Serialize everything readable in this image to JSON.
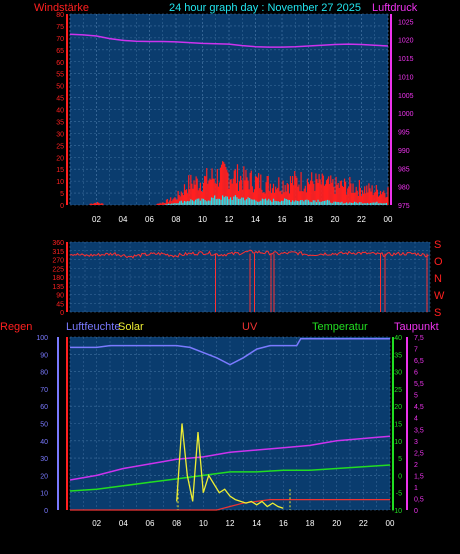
{
  "title": "24 hour graph day : November 27 2025",
  "colors": {
    "bg": "#000000",
    "plot": "#0a3c6e",
    "grid": "#3f6f9f",
    "wind": "#ff2020",
    "gust": "#ff2020",
    "windavg": "#22e4ee",
    "pressure": "#cc33ee",
    "direction": "#ff3030",
    "humidity": "#7a7aff",
    "solar": "#eeee33",
    "uv": "#ee3333",
    "temperature": "#22dd22",
    "dewpoint": "#cc33ee",
    "rain": "#ff2020",
    "tick_white": "#ffffff"
  },
  "chart_data": [
    {
      "type": "line",
      "panel": "wind_pressure",
      "labels": {
        "left": "Windstärke",
        "right": "Luftdruck"
      },
      "x_ticks": [
        "02",
        "04",
        "06",
        "08",
        "10",
        "12",
        "14",
        "16",
        "18",
        "20",
        "22",
        "00"
      ],
      "x_range": [
        0,
        24
      ],
      "y_left": {
        "ticks": [
          "0",
          "5",
          "10",
          "15",
          "20",
          "25",
          "30",
          "35",
          "40",
          "45",
          "50",
          "55",
          "60",
          "65",
          "70",
          "75",
          "80"
        ],
        "range": [
          0,
          80
        ]
      },
      "y_right": {
        "ticks": [
          "975",
          "980",
          "985",
          "990",
          "995",
          "1000",
          "1005",
          "1010",
          "1015",
          "1020",
          "1025"
        ],
        "range": [
          975,
          1027
        ]
      },
      "series": [
        {
          "name": "Luftdruck",
          "axis": "right",
          "x": [
            0,
            1,
            2,
            3,
            4,
            5,
            6,
            7,
            8,
            9,
            10,
            11,
            12,
            13,
            14,
            15,
            16,
            17,
            18,
            19,
            20,
            21,
            22,
            23,
            24
          ],
          "values": [
            1021.5,
            1021.3,
            1021,
            1020.3,
            1019.8,
            1019.6,
            1019.5,
            1019.5,
            1019.4,
            1019.2,
            1019,
            1018.9,
            1018.8,
            1018.4,
            1018.1,
            1018,
            1018,
            1018.1,
            1018.3,
            1018.5,
            1018.7,
            1018.8,
            1018.7,
            1018.5,
            1018.3
          ]
        },
        {
          "axis": "left",
          "x": [
            0,
            1,
            2,
            3,
            4,
            5,
            6,
            7,
            8,
            9,
            10,
            11,
            12,
            13,
            14,
            15,
            16,
            17,
            18,
            19,
            20,
            21,
            22,
            23,
            24
          ],
          "values": [
            0,
            0,
            1,
            0,
            0,
            0,
            0,
            1,
            3,
            9,
            10,
            12,
            13,
            11,
            10,
            9,
            9,
            10,
            10,
            9,
            8,
            8,
            7,
            6,
            6
          ]
        },
        {
          "axis": "left",
          "x": [
            0,
            1,
            2,
            3,
            4,
            5,
            6,
            7,
            8,
            9,
            10,
            11,
            12,
            13,
            14,
            15,
            16,
            17,
            18,
            19,
            20,
            21,
            22,
            23,
            24
          ],
          "values": [
            0,
            0,
            0,
            0,
            0,
            0,
            0,
            0,
            1,
            2,
            2,
            3,
            3,
            3,
            2,
            2,
            2,
            2,
            2,
            2,
            1,
            1,
            1,
            1,
            1
          ]
        }
      ]
    },
    {
      "type": "scatter",
      "panel": "direction",
      "labels": {
        "right_stack": [
          "S",
          "O",
          "N",
          "W",
          "S"
        ]
      },
      "x_range": [
        0,
        24
      ],
      "y_left": {
        "ticks": [
          "0",
          "45",
          "90",
          "135",
          "180",
          "225",
          "270",
          "315",
          "360"
        ],
        "range": [
          0,
          360
        ]
      },
      "series": [
        {
          "axis": "left",
          "x": [
            0,
            1,
            2,
            3,
            4,
            5,
            6,
            7,
            8,
            9,
            10,
            11,
            12,
            13,
            14,
            15,
            16,
            17,
            18,
            19,
            20,
            21,
            22,
            23,
            24
          ],
          "values": [
            300,
            290,
            295,
            300,
            285,
            295,
            300,
            290,
            300,
            305,
            295,
            300,
            310,
            305,
            300,
            305,
            295,
            300,
            300,
            305,
            300,
            295,
            300,
            300,
            290
          ]
        }
      ]
    },
    {
      "type": "line",
      "panel": "humidity_solar_temp",
      "labels": {
        "rain": "Regen",
        "humidity": "Luftfeuchte",
        "solar": "Solar",
        "uv": "UV",
        "temperature": "Temperatur",
        "dewpoint": "Taupunkt"
      },
      "x_ticks": [
        "02",
        "04",
        "06",
        "08",
        "10",
        "12",
        "14",
        "16",
        "18",
        "20",
        "22",
        "00"
      ],
      "x_range": [
        0,
        24
      ],
      "y_humidity": {
        "ticks": [
          "0",
          "10",
          "20",
          "30",
          "40",
          "50",
          "60",
          "70",
          "80",
          "90",
          "100"
        ],
        "range": [
          0,
          100
        ]
      },
      "y_temperature": {
        "ticks": [
          "-10",
          "-5",
          "0",
          "5",
          "10",
          "15",
          "20",
          "25",
          "30",
          "35",
          "40"
        ],
        "range": [
          -10,
          40
        ]
      },
      "y_dewpoint": {
        "ticks": [
          "0",
          "0,5",
          "1",
          "1,5",
          "2",
          "2,5",
          "3",
          "3,5",
          "4",
          "4,5",
          "5",
          "5,5",
          "6",
          "6,5",
          "7",
          "7,5"
        ],
        "range": [
          0,
          7.5
        ]
      },
      "series": [
        {
          "name": "Luftfeuchte",
          "axis": "humidity",
          "x": [
            0,
            1,
            2,
            3,
            4,
            5,
            6,
            7,
            8,
            9,
            10,
            11,
            12,
            13,
            14,
            15,
            16,
            17,
            17.3,
            18,
            19,
            20,
            21,
            22,
            23,
            24
          ],
          "values": [
            94,
            94,
            94,
            95,
            95,
            95,
            95,
            95,
            95,
            94,
            91,
            88,
            84,
            88,
            93,
            95,
            95,
            95,
            99,
            99,
            99,
            99,
            99,
            99,
            99,
            99
          ]
        },
        {
          "name": "Temperatur",
          "axis": "temperature",
          "x": [
            0,
            2,
            4,
            6,
            8,
            10,
            12,
            14,
            16,
            18,
            20,
            22,
            24
          ],
          "values": [
            -4.5,
            -4,
            -3,
            -2,
            -1,
            0,
            1,
            1,
            1.5,
            1.5,
            2,
            2.5,
            3
          ]
        },
        {
          "name": "Taupunkt",
          "axis": "dewpoint",
          "x": [
            0,
            2,
            4,
            6,
            8,
            10,
            12,
            14,
            16,
            18,
            20,
            22,
            24
          ],
          "values": [
            1.3,
            1.5,
            1.8,
            2,
            2.2,
            2.3,
            2.5,
            2.6,
            2.7,
            2.8,
            3,
            3.1,
            3.2
          ]
        },
        {
          "name": "Solar",
          "axis": "humidity",
          "x": [
            8,
            8.4,
            8.8,
            9.2,
            9.6,
            10,
            10.4,
            10.8,
            11.2,
            11.6,
            12,
            12.4,
            12.8,
            13.2,
            13.6,
            14,
            14.4,
            14.8,
            15.2,
            15.6,
            16
          ],
          "values": [
            5,
            50,
            20,
            5,
            45,
            10,
            20,
            15,
            10,
            12,
            8,
            6,
            5,
            4,
            5,
            3,
            5,
            2,
            4,
            2,
            1
          ]
        },
        {
          "name": "UV",
          "axis": "humidity",
          "x": [
            0,
            8,
            9,
            10,
            11,
            12,
            13,
            14,
            15,
            16,
            17,
            18,
            19,
            20,
            21,
            22,
            23,
            24
          ],
          "values": [
            0,
            0,
            0,
            0,
            0,
            2,
            4,
            5,
            6,
            6,
            6,
            6,
            6,
            6,
            6,
            6,
            6,
            6
          ]
        }
      ]
    }
  ]
}
